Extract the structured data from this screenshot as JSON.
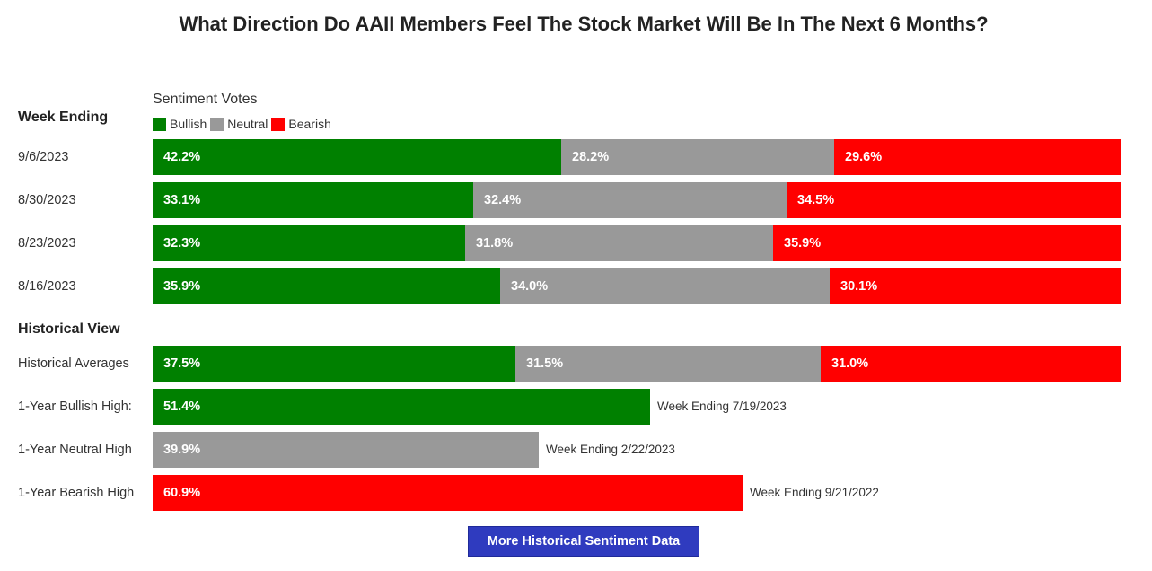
{
  "title": "What Direction Do AAII Members Feel The Stock Market Will Be In The Next 6 Months?",
  "legend_title": "Sentiment Votes",
  "week_header": "Week Ending",
  "historical_header": "Historical View",
  "button_label": "More Historical Sentiment Data",
  "colors": {
    "bullish": "#008000",
    "neutral": "#999999",
    "bearish": "#ff0000",
    "button": "#2f3bbf"
  },
  "chart_data": {
    "type": "bar",
    "stacked": true,
    "orientation": "horizontal",
    "x_max": 100,
    "legend": [
      "Bullish",
      "Neutral",
      "Bearish"
    ],
    "weekly": [
      {
        "label": "9/6/2023",
        "values": [
          42.2,
          28.2,
          29.6
        ],
        "texts": [
          "42.2%",
          "28.2%",
          "29.6%"
        ]
      },
      {
        "label": "8/30/2023",
        "values": [
          33.1,
          32.4,
          34.5
        ],
        "texts": [
          "33.1%",
          "32.4%",
          "34.5%"
        ]
      },
      {
        "label": "8/23/2023",
        "values": [
          32.3,
          31.8,
          35.9
        ],
        "texts": [
          "32.3%",
          "31.8%",
          "35.9%"
        ]
      },
      {
        "label": "8/16/2023",
        "values": [
          35.9,
          34.0,
          30.1
        ],
        "texts": [
          "35.9%",
          "34.0%",
          "30.1%"
        ]
      }
    ],
    "historical": [
      {
        "label": "Historical Averages",
        "values": [
          37.5,
          31.5,
          31.0
        ],
        "texts": [
          "37.5%",
          "31.5%",
          "31.0%"
        ]
      }
    ],
    "highs": [
      {
        "label": "1-Year Bullish High:",
        "series": "Bullish",
        "value": 51.4,
        "text": "51.4%",
        "note": "Week Ending 7/19/2023"
      },
      {
        "label": "1-Year Neutral High",
        "series": "Neutral",
        "value": 39.9,
        "text": "39.9%",
        "note": "Week Ending 2/22/2023"
      },
      {
        "label": "1-Year Bearish High",
        "series": "Bearish",
        "value": 60.9,
        "text": "60.9%",
        "note": "Week Ending 9/21/2022"
      }
    ]
  }
}
